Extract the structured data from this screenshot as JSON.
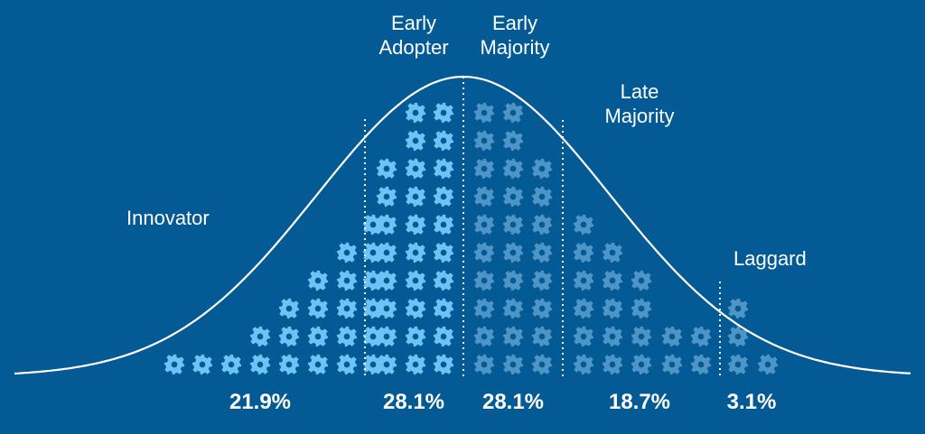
{
  "segments": [
    {
      "label": "Innovator",
      "percent": "21.9%",
      "columns": [
        1,
        1,
        1,
        2,
        3,
        4,
        5,
        6
      ],
      "gear_color": "#6cc4f4"
    },
    {
      "label": "Early\nAdopter",
      "percent": "28.1%",
      "columns": [
        8,
        10,
        10
      ],
      "gear_color": "#6cc4f4"
    },
    {
      "label": "Early\nMajority",
      "percent": "28.1%",
      "columns": [
        10,
        10,
        8
      ],
      "gear_color": "#4d95c6"
    },
    {
      "label": "Late\nMajority",
      "percent": "18.7%",
      "columns": [
        6,
        5,
        4,
        2,
        2
      ],
      "gear_color": "#4d95c6"
    },
    {
      "label": "Laggard",
      "percent": "3.1%",
      "columns": [
        3,
        1
      ],
      "gear_color": "#4d95c6"
    }
  ],
  "colors": {
    "background": "#045a95",
    "curve": "#ffffff",
    "divider": "#ffffff",
    "text": "#ffffff"
  },
  "icon": "gear-icon"
}
